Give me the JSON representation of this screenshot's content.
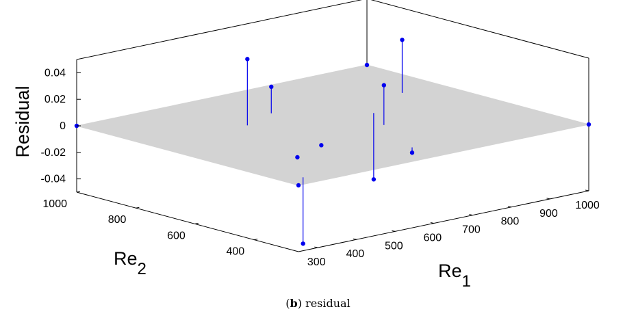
{
  "chart_data": {
    "type": "scatter",
    "variant": "3d-stem-with-plane",
    "xlabel": "Re",
    "xlabel_sub": "1",
    "ylabel": "Re",
    "ylabel_sub": "2",
    "zlabel": "Residual",
    "x_ticks": [
      "300",
      "400",
      "500",
      "600",
      "700",
      "800",
      "900",
      "1000"
    ],
    "y_ticks": [
      "400",
      "600",
      "800",
      "1000"
    ],
    "z_ticks": [
      "-0.04",
      "-0.02",
      "0",
      "0.02",
      "0.04"
    ],
    "xlim": [
      250,
      1000
    ],
    "ylim": [
      250,
      1000
    ],
    "zlim": [
      -0.05,
      0.05
    ],
    "plane_z": 0,
    "plane_color": "#d3d3d3",
    "stem_color": "#0000ee",
    "marker_color": "#0000ee",
    "points": [
      {
        "x": 250,
        "y": 1000,
        "z": 0.0
      },
      {
        "x": 1000,
        "y": 1000,
        "z": 0.0
      },
      {
        "x": 1000,
        "y": 250,
        "z": 0.0
      },
      {
        "x": 250,
        "y": 250,
        "z": 0.0
      },
      {
        "x": 500,
        "y": 750,
        "z": 0.05
      },
      {
        "x": 300,
        "y": 300,
        "z": -0.05
      },
      {
        "x": 700,
        "y": 550,
        "z": 0.03
      },
      {
        "x": 750,
        "y": 650,
        "z": -0.05
      },
      {
        "x": 900,
        "y": 750,
        "z": 0.04
      },
      {
        "x": 400,
        "y": 450,
        "z": 0.0
      },
      {
        "x": 620,
        "y": 350,
        "z": -0.004
      },
      {
        "x": 500,
        "y": 500,
        "z": 0.0
      },
      {
        "x": 600,
        "y": 800,
        "z": 0.02
      }
    ],
    "grid": false
  },
  "caption": {
    "label": "b",
    "text": " residual"
  }
}
